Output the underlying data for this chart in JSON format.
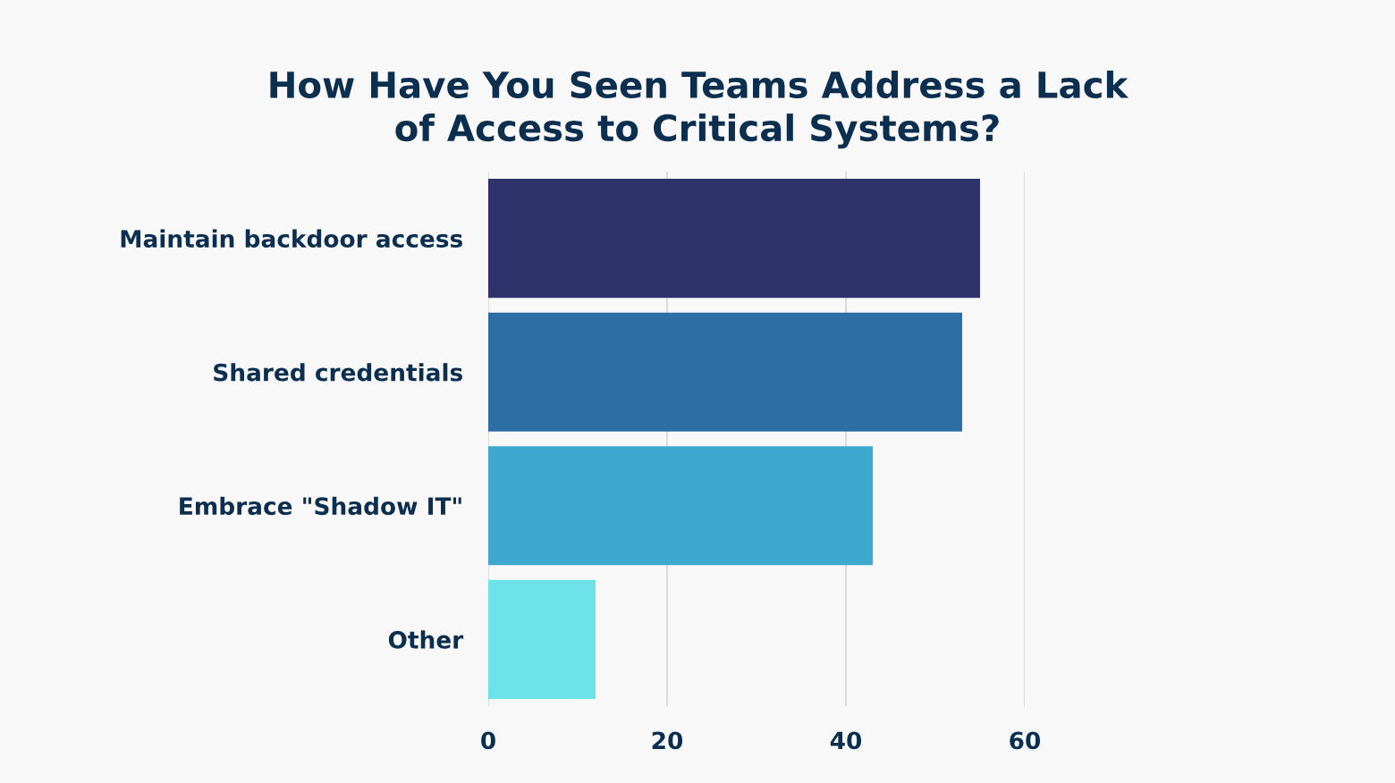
{
  "chart_data": {
    "type": "bar",
    "orientation": "horizontal",
    "title": "How Have You Seen Teams Address a Lack\nof Access to Critical Systems?",
    "categories": [
      "Maintain backdoor access",
      "Shared credentials",
      "Embrace \"Shadow IT\"",
      "Other"
    ],
    "values": [
      55,
      53,
      43,
      12
    ],
    "colors": [
      "#2f336b",
      "#2d6ea5",
      "#3ea8cf",
      "#6ce3e8"
    ],
    "xlim": [
      0,
      60
    ],
    "xticks": [
      0,
      20,
      40,
      60
    ],
    "grid": "x"
  }
}
